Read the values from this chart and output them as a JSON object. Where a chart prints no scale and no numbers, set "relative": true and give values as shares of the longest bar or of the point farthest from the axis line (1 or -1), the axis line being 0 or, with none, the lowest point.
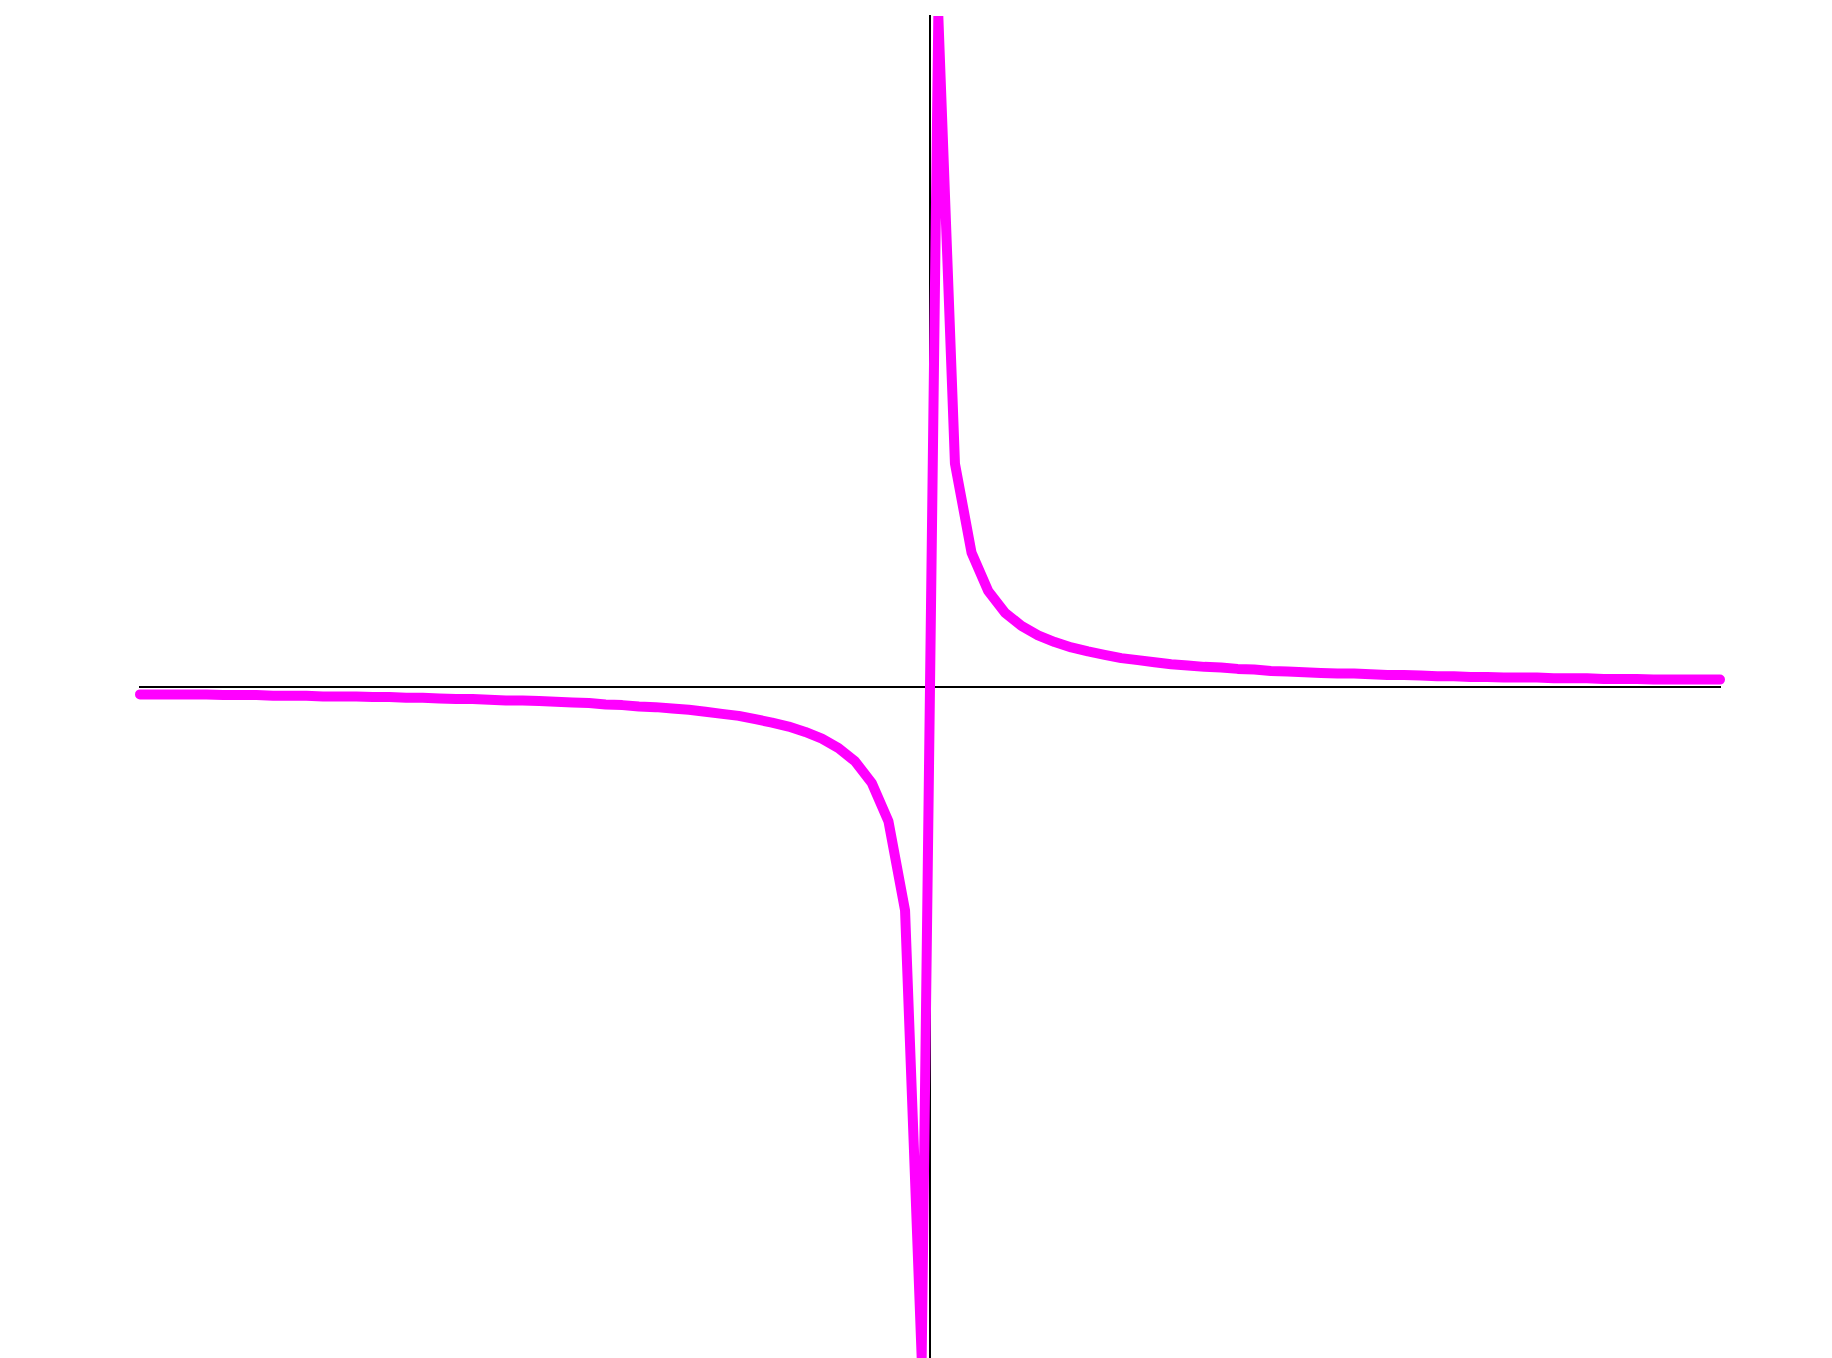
{
  "chart_data": {
    "type": "line",
    "relative": true,
    "legend": false,
    "line_style": "solid",
    "categories": [
      null,
      null,
      null,
      null,
      null,
      null,
      null,
      null,
      null,
      null,
      null,
      null,
      null,
      null,
      null,
      null,
      null,
      null,
      null,
      null,
      null,
      null,
      null,
      null,
      null,
      null,
      null,
      null,
      null,
      null,
      null,
      null,
      null,
      null,
      null,
      null,
      null,
      null,
      null,
      null,
      null,
      null,
      null,
      null,
      null,
      null,
      null,
      null,
      null,
      null,
      null,
      null,
      null,
      null,
      null,
      null,
      null,
      null,
      null,
      null,
      null,
      null,
      null,
      null,
      null,
      null,
      null,
      null,
      null,
      null,
      null,
      null,
      null,
      null,
      null,
      null,
      null,
      null,
      null,
      null,
      null,
      null,
      null,
      null,
      null,
      null,
      null,
      null,
      null,
      null,
      null,
      null,
      null,
      null,
      null,
      null
    ],
    "series": [
      {
        "color": "#ff00ff",
        "values": [
          -0.011,
          -0.011,
          -0.011,
          -0.011,
          -0.011,
          -0.012,
          -0.012,
          -0.012,
          -0.013,
          -0.013,
          -0.013,
          -0.014,
          -0.014,
          -0.014,
          -0.015,
          -0.015,
          -0.016,
          -0.016,
          -0.017,
          -0.018,
          -0.018,
          -0.019,
          -0.02,
          -0.02,
          -0.021,
          -0.022,
          -0.023,
          -0.024,
          -0.026,
          -0.027,
          -0.029,
          -0.03,
          -0.032,
          -0.034,
          -0.037,
          -0.04,
          -0.043,
          -0.048,
          -0.053,
          -0.059,
          -0.067,
          -0.077,
          -0.091,
          -0.111,
          -0.143,
          -0.2,
          -0.333,
          -1,
          1,
          0.333,
          0.2,
          0.143,
          0.111,
          0.091,
          0.077,
          0.067,
          0.059,
          0.053,
          0.048,
          0.043,
          0.04,
          0.037,
          0.034,
          0.032,
          0.03,
          0.029,
          0.027,
          0.026,
          0.024,
          0.023,
          0.022,
          0.021,
          0.02,
          0.02,
          0.019,
          0.018,
          0.018,
          0.017,
          0.016,
          0.016,
          0.015,
          0.015,
          0.014,
          0.014,
          0.014,
          0.013,
          0.013,
          0.013,
          0.012,
          0.012,
          0.012,
          0.011,
          0.011,
          0.011,
          0.011,
          0.011
        ]
      }
    ]
  }
}
